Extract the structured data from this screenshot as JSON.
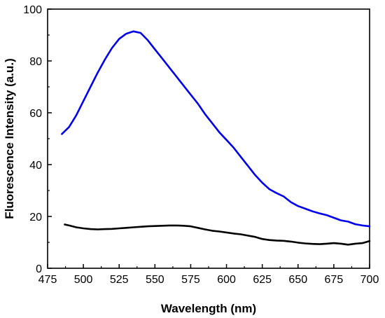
{
  "chart_data": {
    "type": "line",
    "title": "",
    "xlabel": "Wavelength (nm)",
    "ylabel": "Fluorescence Intensity (a.u.)",
    "xlim": [
      475,
      700
    ],
    "ylim": [
      0,
      100
    ],
    "xticks": [
      475,
      500,
      525,
      550,
      575,
      600,
      625,
      650,
      675,
      700
    ],
    "yticks": [
      0,
      20,
      40,
      60,
      80,
      100
    ],
    "grid": false,
    "legend": "none",
    "series": [
      {
        "color": "#0000ee",
        "x": [
          485,
          490,
          495,
          500,
          505,
          510,
          515,
          520,
          525,
          530,
          535,
          540,
          545,
          550,
          555,
          560,
          565,
          570,
          575,
          580,
          585,
          590,
          595,
          600,
          605,
          610,
          615,
          620,
          625,
          630,
          635,
          640,
          645,
          650,
          655,
          660,
          665,
          670,
          675,
          680,
          685,
          690,
          695,
          700
        ],
        "y": [
          51.8,
          54.5,
          59.0,
          64.5,
          70.0,
          75.5,
          80.5,
          85.0,
          88.5,
          90.5,
          91.4,
          90.8,
          88.0,
          84.5,
          81.0,
          77.5,
          74.0,
          70.5,
          67.0,
          63.5,
          59.5,
          56.0,
          52.5,
          49.5,
          46.5,
          43.0,
          39.5,
          36.0,
          33.0,
          30.5,
          29.0,
          27.7,
          25.5,
          24.0,
          23.0,
          22.0,
          21.2,
          20.5,
          19.5,
          18.5,
          18.0,
          17.0,
          16.5,
          16.2
        ]
      },
      {
        "color": "#000000",
        "x": [
          487,
          490,
          495,
          500,
          505,
          510,
          515,
          520,
          525,
          530,
          535,
          540,
          545,
          550,
          555,
          560,
          565,
          570,
          575,
          580,
          585,
          590,
          595,
          600,
          605,
          610,
          615,
          620,
          625,
          630,
          635,
          640,
          645,
          650,
          655,
          660,
          665,
          670,
          675,
          680,
          685,
          690,
          695,
          700
        ],
        "y": [
          16.9,
          16.5,
          15.8,
          15.4,
          15.1,
          15.0,
          15.1,
          15.2,
          15.4,
          15.6,
          15.8,
          16.0,
          16.2,
          16.3,
          16.4,
          16.5,
          16.5,
          16.4,
          16.2,
          15.6,
          15.0,
          14.5,
          14.2,
          13.8,
          13.4,
          13.1,
          12.6,
          12.1,
          11.3,
          10.9,
          10.7,
          10.6,
          10.3,
          9.9,
          9.6,
          9.4,
          9.3,
          9.5,
          9.7,
          9.5,
          9.1,
          9.5,
          9.7,
          10.5
        ]
      }
    ]
  }
}
